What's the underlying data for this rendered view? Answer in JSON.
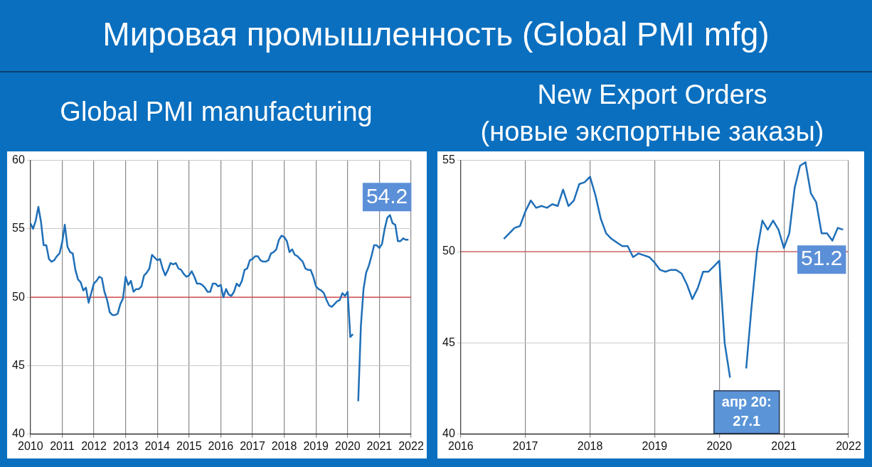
{
  "chart_data": [
    {
      "type": "line",
      "title": "Мировая промышленность (Global PMI mfg)",
      "subtitle": "Global PMI manufacturing",
      "x": [
        "2010-01",
        "2010-02",
        "2010-03",
        "2010-04",
        "2010-05",
        "2010-06",
        "2010-07",
        "2010-08",
        "2010-09",
        "2010-10",
        "2010-11",
        "2010-12",
        "2011-01",
        "2011-02",
        "2011-03",
        "2011-04",
        "2011-05",
        "2011-06",
        "2011-07",
        "2011-08",
        "2011-09",
        "2011-10",
        "2011-11",
        "2011-12",
        "2012-01",
        "2012-02",
        "2012-03",
        "2012-04",
        "2012-05",
        "2012-06",
        "2012-07",
        "2012-08",
        "2012-09",
        "2012-10",
        "2012-11",
        "2012-12",
        "2013-01",
        "2013-02",
        "2013-03",
        "2013-04",
        "2013-05",
        "2013-06",
        "2013-07",
        "2013-08",
        "2013-09",
        "2013-10",
        "2013-11",
        "2013-12",
        "2014-01",
        "2014-02",
        "2014-03",
        "2014-04",
        "2014-05",
        "2014-06",
        "2014-07",
        "2014-08",
        "2014-09",
        "2014-10",
        "2014-11",
        "2014-12",
        "2015-01",
        "2015-02",
        "2015-03",
        "2015-04",
        "2015-05",
        "2015-06",
        "2015-07",
        "2015-08",
        "2015-09",
        "2015-10",
        "2015-11",
        "2015-12",
        "2016-01",
        "2016-02",
        "2016-03",
        "2016-04",
        "2016-05",
        "2016-06",
        "2016-07",
        "2016-08",
        "2016-09",
        "2016-10",
        "2016-11",
        "2016-12",
        "2017-01",
        "2017-02",
        "2017-03",
        "2017-04",
        "2017-05",
        "2017-06",
        "2017-07",
        "2017-08",
        "2017-09",
        "2017-10",
        "2017-11",
        "2017-12",
        "2018-01",
        "2018-02",
        "2018-03",
        "2018-04",
        "2018-05",
        "2018-06",
        "2018-07",
        "2018-08",
        "2018-09",
        "2018-10",
        "2018-11",
        "2018-12",
        "2019-01",
        "2019-02",
        "2019-03",
        "2019-04",
        "2019-05",
        "2019-06",
        "2019-07",
        "2019-08",
        "2019-09",
        "2019-10",
        "2019-11",
        "2019-12",
        "2020-01",
        "2020-02",
        "2020-03",
        "2020-04",
        "2020-05",
        "2020-06",
        "2020-07",
        "2020-08",
        "2020-09",
        "2020-10",
        "2020-11",
        "2020-12",
        "2021-01",
        "2021-02",
        "2021-03",
        "2021-04",
        "2021-05",
        "2021-06",
        "2021-07",
        "2021-08",
        "2021-09",
        "2021-10",
        "2021-11",
        "2021-12"
      ],
      "series": [
        {
          "color": "#1f6fb8",
          "values": [
            55.4,
            55.0,
            55.6,
            56.6,
            55.5,
            53.8,
            53.8,
            52.8,
            52.6,
            52.7,
            53.0,
            53.2,
            54.0,
            55.3,
            53.7,
            53.3,
            53.2,
            52.0,
            51.3,
            51.1,
            50.5,
            50.7,
            49.6,
            50.3,
            51.0,
            51.2,
            51.5,
            51.4,
            50.4,
            49.8,
            48.9,
            48.7,
            48.7,
            48.8,
            49.5,
            49.9,
            51.5,
            50.9,
            51.2,
            50.4,
            50.6,
            50.6,
            50.8,
            51.6,
            51.8,
            52.1,
            53.1,
            52.9,
            52.7,
            52.8,
            52.1,
            51.6,
            52.0,
            52.5,
            52.4,
            52.5,
            52.1,
            52.0,
            51.7,
            51.5,
            51.6,
            51.9,
            51.5,
            51.0,
            51.0,
            50.9,
            50.7,
            50.4,
            50.4,
            51.0,
            51.0,
            50.8,
            50.9,
            50.0,
            50.6,
            50.2,
            50.1,
            50.4,
            51.0,
            50.8,
            51.2,
            52.0,
            52.1,
            52.7,
            52.8,
            53.0,
            53.0,
            52.7,
            52.6,
            52.6,
            52.7,
            53.2,
            53.3,
            53.5,
            54.2,
            54.5,
            54.4,
            54.1,
            53.3,
            53.5,
            53.1,
            53.0,
            52.8,
            52.6,
            52.1,
            52.0,
            52.0,
            51.5,
            50.8,
            50.6,
            50.5,
            50.3,
            49.8,
            49.4,
            49.3,
            49.5,
            49.7,
            49.8,
            50.3,
            50.1,
            50.4,
            47.1,
            47.3,
            null,
            42.4,
            47.9,
            50.6,
            51.8,
            52.3,
            53.0,
            53.8,
            53.8,
            53.6,
            53.9,
            55.0,
            55.8,
            56.0,
            55.4,
            55.3,
            54.1,
            54.1,
            54.3,
            54.2,
            54.2
          ],
          "value_labels": [
            null,
            null,
            null,
            null,
            null,
            null,
            null,
            null,
            null,
            null,
            null,
            null,
            null,
            null,
            null,
            null,
            null,
            null,
            null,
            null,
            null,
            null,
            null,
            null,
            null,
            null,
            null,
            null,
            null,
            null,
            null,
            null,
            null,
            null,
            null,
            null,
            null,
            null,
            null,
            null,
            null,
            null,
            null,
            null,
            null,
            null,
            null,
            null,
            null,
            null,
            null,
            null,
            null,
            null,
            null,
            null,
            null,
            null,
            null,
            null,
            null,
            null,
            null,
            null,
            null,
            null,
            null,
            null,
            null,
            null,
            null,
            null,
            null,
            null,
            null,
            null,
            null,
            null,
            null,
            null,
            null,
            null,
            null,
            null,
            null,
            null,
            null,
            null,
            null,
            null,
            null,
            null,
            null,
            null,
            null,
            null,
            null,
            null,
            null,
            null,
            null,
            null,
            null,
            null,
            null,
            null,
            null,
            null,
            null,
            null,
            null,
            null,
            null,
            null,
            null,
            null,
            null,
            null,
            null,
            null,
            null,
            null,
            null,
            null,
            null,
            null,
            null,
            null,
            null,
            null,
            null,
            null,
            null,
            null,
            null,
            null,
            null,
            null,
            null,
            null,
            null,
            null,
            null,
            "54.2"
          ]
        }
      ],
      "xlim": [
        "2010",
        "2022"
      ],
      "xticks": [
        "2010",
        "2011",
        "2012",
        "2013",
        "2014",
        "2015",
        "2016",
        "2017",
        "2018",
        "2019",
        "2020",
        "2021",
        "2022"
      ],
      "ylim": [
        40,
        60
      ],
      "yticks": [
        40,
        45,
        50,
        55,
        60
      ],
      "grid": true,
      "ref_lines": [
        {
          "axis": "y",
          "value": 50,
          "color": "#d03030"
        }
      ]
    },
    {
      "type": "line",
      "title": "New Export Orders",
      "subtitle": "(новые экспортные заказы)",
      "x": [
        "2016-09",
        "2016-10",
        "2016-11",
        "2016-12",
        "2017-01",
        "2017-02",
        "2017-03",
        "2017-04",
        "2017-05",
        "2017-06",
        "2017-07",
        "2017-08",
        "2017-09",
        "2017-10",
        "2017-11",
        "2017-12",
        "2018-01",
        "2018-02",
        "2018-03",
        "2018-04",
        "2018-05",
        "2018-06",
        "2018-07",
        "2018-08",
        "2018-09",
        "2018-10",
        "2018-11",
        "2018-12",
        "2019-01",
        "2019-02",
        "2019-03",
        "2019-04",
        "2019-05",
        "2019-06",
        "2019-07",
        "2019-08",
        "2019-09",
        "2019-10",
        "2019-11",
        "2019-12",
        "2020-01",
        "2020-02",
        "2020-03",
        "2020-04",
        "2020-05",
        "2020-06",
        "2020-07",
        "2020-08",
        "2020-09",
        "2020-10",
        "2020-11",
        "2020-12",
        "2021-01",
        "2021-02",
        "2021-03",
        "2021-04",
        "2021-05",
        "2021-06",
        "2021-07",
        "2021-08",
        "2021-09",
        "2021-10",
        "2021-11",
        "2021-12"
      ],
      "series": [
        {
          "color": "#1f6fb8",
          "values": [
            50.7,
            51.0,
            51.3,
            51.4,
            52.2,
            52.8,
            52.4,
            52.5,
            52.4,
            52.6,
            52.5,
            53.4,
            52.5,
            52.8,
            53.7,
            53.8,
            54.1,
            53.1,
            51.8,
            51.0,
            50.7,
            50.5,
            50.3,
            50.3,
            49.7,
            49.9,
            49.8,
            49.7,
            49.4,
            49.0,
            48.9,
            49.0,
            49.0,
            48.8,
            48.2,
            47.4,
            48.0,
            48.9,
            48.9,
            49.2,
            49.5,
            45.0,
            43.1,
            null,
            null,
            43.6,
            47.0,
            50.0,
            51.7,
            51.2,
            51.7,
            51.2,
            50.2,
            51.0,
            53.5,
            54.7,
            54.9,
            53.2,
            52.7,
            51.0,
            51.0,
            50.6,
            51.3,
            51.2
          ],
          "value_labels": [
            null,
            null,
            null,
            null,
            null,
            null,
            null,
            null,
            null,
            null,
            null,
            null,
            null,
            null,
            null,
            null,
            null,
            null,
            null,
            null,
            null,
            null,
            null,
            null,
            null,
            null,
            null,
            null,
            null,
            null,
            null,
            null,
            null,
            null,
            null,
            null,
            null,
            null,
            null,
            null,
            null,
            null,
            null,
            null,
            null,
            null,
            null,
            null,
            null,
            null,
            null,
            null,
            null,
            null,
            null,
            null,
            null,
            null,
            null,
            null,
            null,
            null,
            null,
            "51.2"
          ]
        }
      ],
      "xlim": [
        "2016",
        "2022"
      ],
      "xticks": [
        "2016",
        "2017",
        "2018",
        "2019",
        "2020",
        "2021",
        "2022"
      ],
      "ylim": [
        40,
        55
      ],
      "yticks": [
        40,
        45,
        50,
        55
      ],
      "grid": true,
      "ref_lines": [
        {
          "axis": "y",
          "value": 50,
          "color": "#d03030"
        }
      ],
      "annotations": [
        "апр 20:\n27.1"
      ]
    }
  ]
}
